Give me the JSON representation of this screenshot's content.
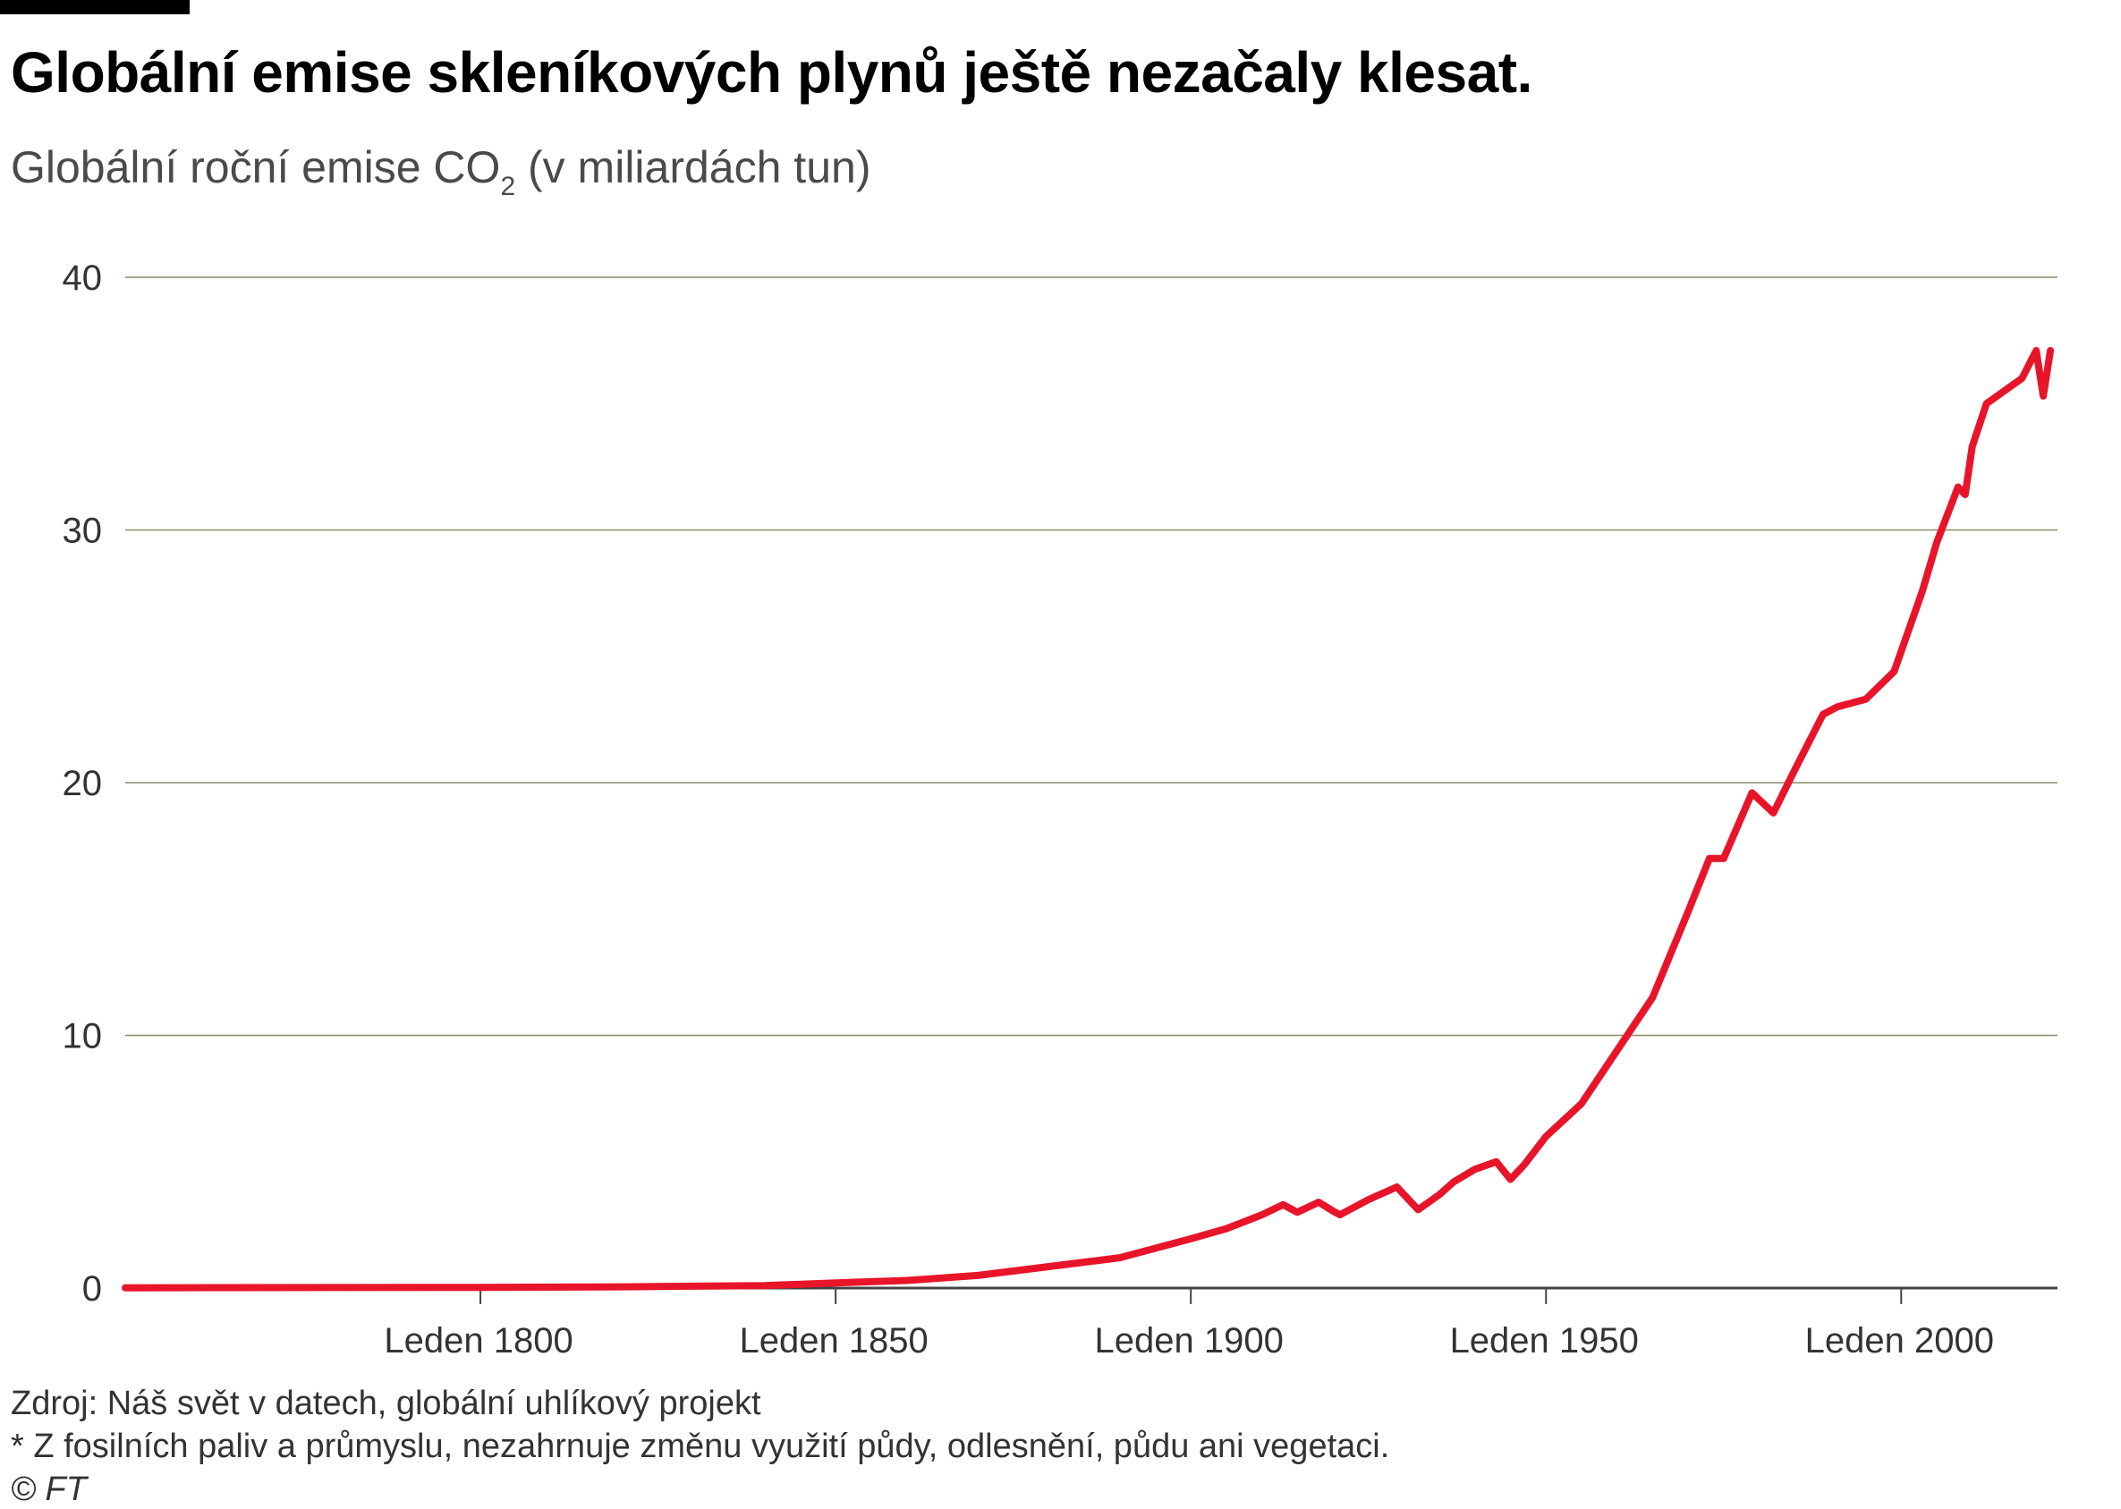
{
  "header": {
    "title": "Globální emise skleníkových plynů ještě nezačaly klesat.",
    "subtitle_pre": "Globální roční emise CO",
    "subtitle_sub": "2",
    "subtitle_post": " (v miliardách tun)"
  },
  "footer": {
    "source": "Zdroj: Náš svět v datech, globální uhlíkový projekt",
    "note": "* Z fosilních paliv a průmyslu, nezahrnuje změnu využití půdy, odlesnění, půdu ani vegetaci.",
    "copyright": "© FT"
  },
  "colors": {
    "line": "#e8152a",
    "grid": "#8a8a6a",
    "axis": "#444444",
    "text": "#333333"
  },
  "chart_data": {
    "type": "line",
    "title": "Globální emise skleníkových plynů ještě nezačaly klesat.",
    "ylabel": "Globální roční emise CO2 (v miliardách tun)",
    "ylim": [
      0,
      40
    ],
    "xlim": [
      1750,
      2022
    ],
    "y_ticks": [
      0,
      10,
      20,
      30,
      40
    ],
    "x_ticks": [
      {
        "value": 1800,
        "label": "Leden 1800"
      },
      {
        "value": 1850,
        "label": "Leden 1850"
      },
      {
        "value": 1900,
        "label": "Leden 1900"
      },
      {
        "value": 1950,
        "label": "Leden 1950"
      },
      {
        "value": 2000,
        "label": "Leden 2000"
      }
    ],
    "grid": true,
    "series": [
      {
        "x": [
          1750,
          1800,
          1820,
          1840,
          1850,
          1860,
          1870,
          1880,
          1890,
          1900,
          1905,
          1910,
          1913,
          1915,
          1918,
          1920,
          1921,
          1925,
          1929,
          1932,
          1935,
          1937,
          1940,
          1943,
          1945,
          1947,
          1950,
          1955,
          1960,
          1965,
          1970,
          1973,
          1975,
          1979,
          1982,
          1985,
          1989,
          1991,
          1995,
          1999,
          2003,
          2005,
          2008,
          2009,
          2010,
          2012,
          2015,
          2017,
          2019,
          2020,
          2021
        ],
        "y": [
          0.01,
          0.03,
          0.05,
          0.1,
          0.2,
          0.3,
          0.5,
          0.85,
          1.2,
          1.95,
          2.35,
          2.9,
          3.3,
          3.0,
          3.4,
          3.05,
          2.9,
          3.5,
          4.0,
          3.1,
          3.7,
          4.2,
          4.7,
          5.0,
          4.3,
          4.9,
          6.0,
          7.3,
          9.4,
          11.5,
          14.9,
          17.0,
          17.0,
          19.6,
          18.8,
          20.5,
          22.7,
          23.0,
          23.3,
          24.4,
          27.6,
          29.5,
          31.7,
          31.4,
          33.3,
          35.0,
          35.6,
          36.0,
          37.1,
          35.3,
          37.1
        ]
      }
    ]
  }
}
